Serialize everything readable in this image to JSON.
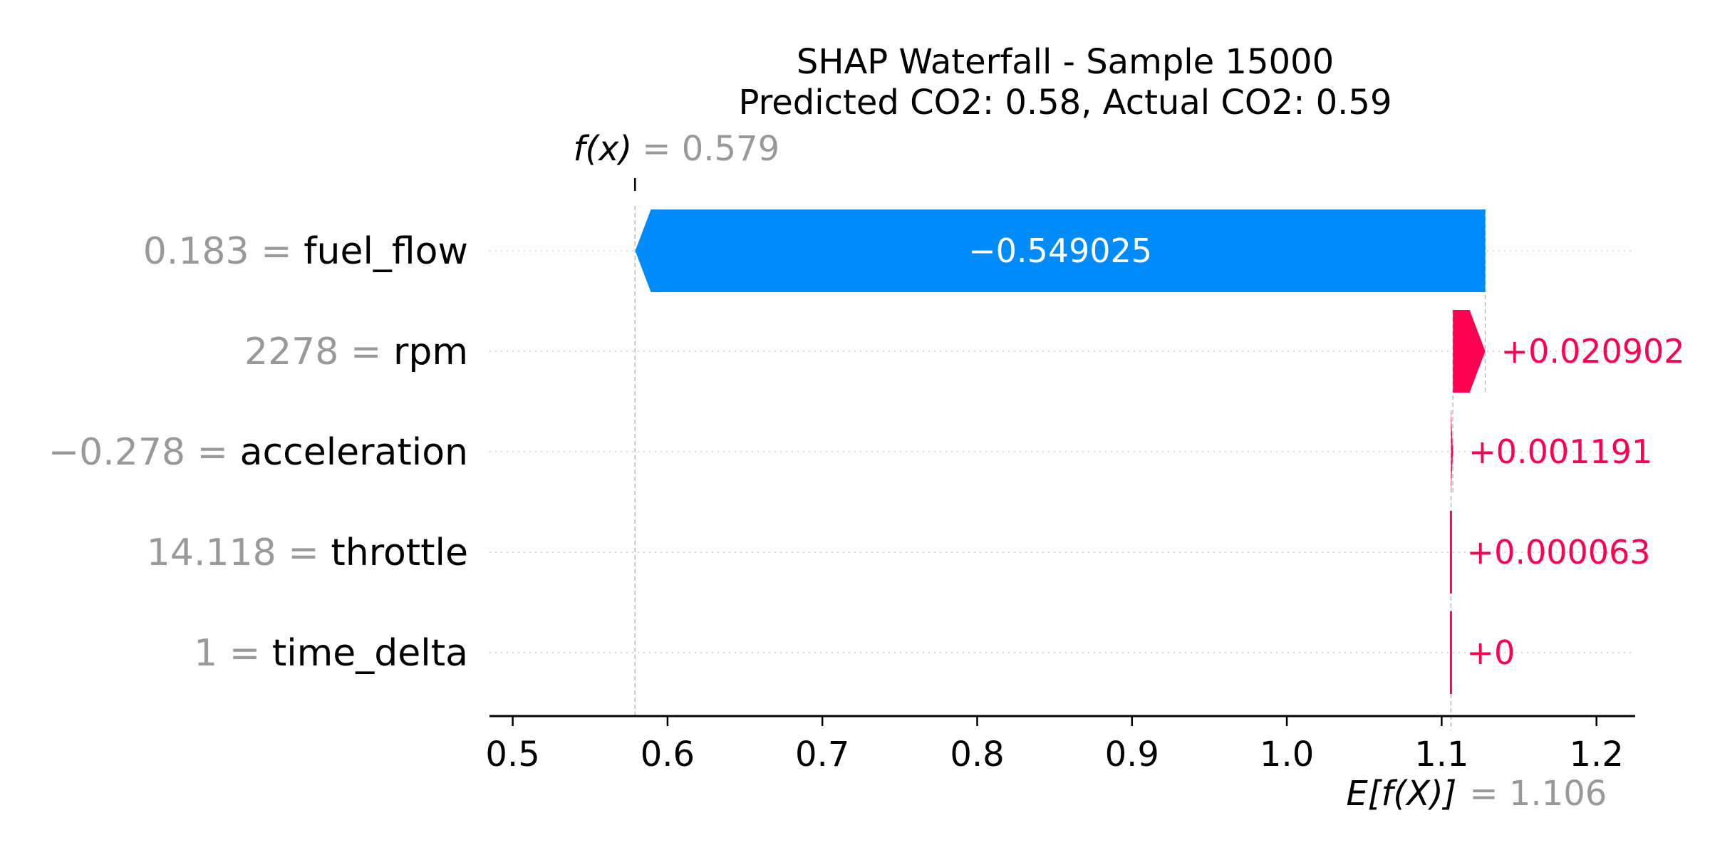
{
  "chart_data": {
    "type": "bar",
    "subtype": "shap-waterfall",
    "title_line1": "SHAP Waterfall - Sample 15000",
    "title_line2": "Predicted CO2: 0.58, Actual CO2: 0.59",
    "fx_label": "f(x)",
    "fx_value_text": "= 0.579",
    "fx": 0.579,
    "ef_label": "E[f(X)]",
    "ef_value_text": "= 1.106",
    "base_value": 1.106,
    "features": [
      {
        "name": "fuel_flow",
        "value": "0.183",
        "contribution": -0.549025,
        "label": "−0.549025"
      },
      {
        "name": "rpm",
        "value": "2278",
        "contribution": 0.020902,
        "label": "+0.020902"
      },
      {
        "name": "acceleration",
        "value": "−0.278",
        "contribution": 0.001191,
        "label": "+0.001191"
      },
      {
        "name": "throttle",
        "value": "14.118",
        "contribution": 6.3e-05,
        "label": "+0.000063"
      },
      {
        "name": "time_delta",
        "value": "1",
        "contribution": 0,
        "label": "+0"
      }
    ],
    "xlim": [
      0.485,
      1.225
    ],
    "xticks": [
      "0.5",
      "0.6",
      "0.7",
      "0.8",
      "0.9",
      "1.0",
      "1.1",
      "1.2"
    ],
    "grid": false,
    "colors": {
      "negative": "#008bfb",
      "positive": "#ff0051",
      "feature_value": "#999999",
      "guide_line": "#bbbbbb"
    }
  }
}
